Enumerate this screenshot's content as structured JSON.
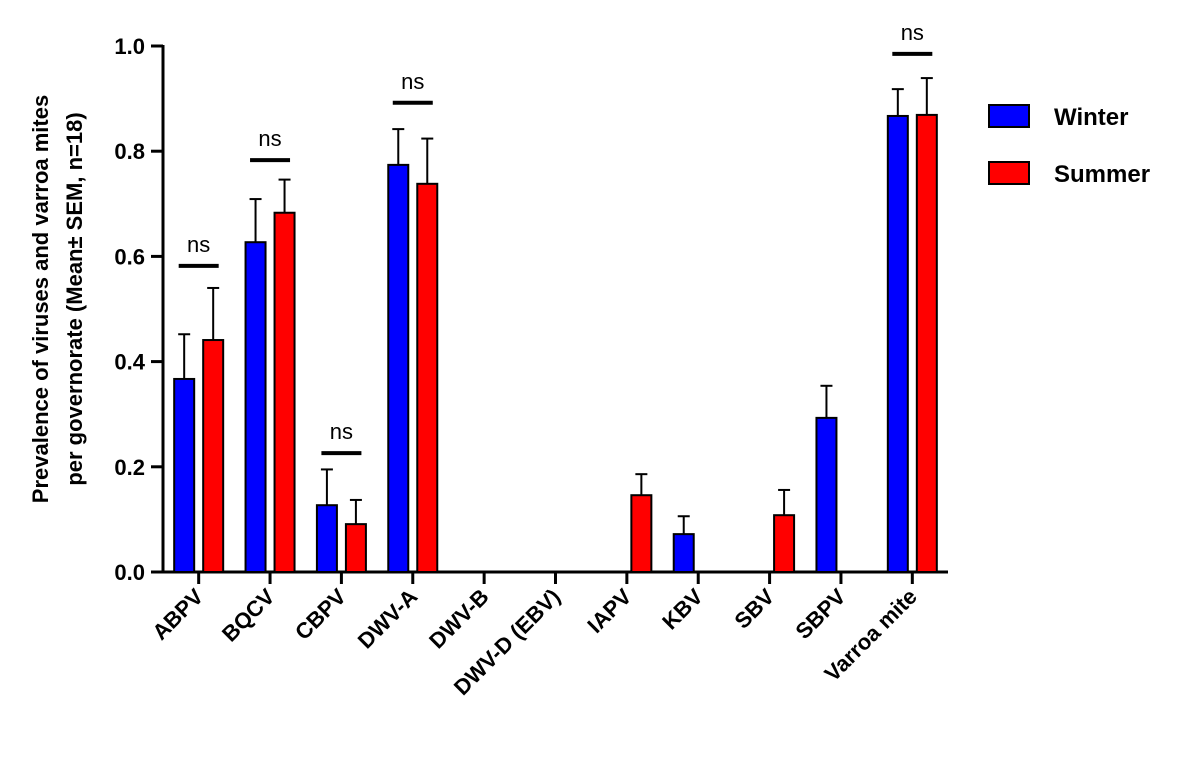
{
  "chart_data": {
    "type": "bar",
    "ylabel": [
      "Prevalence of viruses and varroa mites",
      "per governorate (Mean± SEM, n=18)"
    ],
    "categories": [
      "ABPV",
      "BQCV",
      "CBPV",
      "DWV-A",
      "DWV-B",
      "DWV-D (EBV)",
      "IAPV",
      "KBV",
      "SBV",
      "SBPV",
      "Varroa mite"
    ],
    "series": [
      {
        "name": "Winter",
        "color": "#0000ff",
        "values": [
          0.367,
          0.627,
          0.127,
          0.774,
          0,
          0,
          0,
          0.072,
          0,
          0.293,
          0.867
        ],
        "errors": [
          0.085,
          0.082,
          0.068,
          0.068,
          null,
          null,
          null,
          0.034,
          null,
          0.061,
          0.051
        ]
      },
      {
        "name": "Summer",
        "color": "#ff0000",
        "values": [
          0.441,
          0.683,
          0.091,
          0.738,
          0,
          0,
          0.146,
          0,
          0.108,
          0,
          0.869
        ],
        "errors": [
          0.099,
          0.063,
          0.046,
          0.086,
          null,
          null,
          0.04,
          null,
          0.048,
          null,
          0.07
        ]
      }
    ],
    "annotations": [
      {
        "category": "ABPV",
        "text": "ns",
        "y": 0.582
      },
      {
        "category": "BQCV",
        "text": "ns",
        "y": 0.783
      },
      {
        "category": "CBPV",
        "text": "ns",
        "y": 0.226
      },
      {
        "category": "DWV-A",
        "text": "ns",
        "y": 0.892
      },
      {
        "category": "Varroa mite",
        "text": "ns",
        "y": 0.985
      }
    ],
    "ylim": [
      0,
      1
    ],
    "yticks": [
      {
        "value": 0,
        "label": "0.0"
      },
      {
        "value": 0.2,
        "label": "0.2"
      },
      {
        "value": 0.4,
        "label": "0.4"
      },
      {
        "value": 0.6,
        "label": "0.6"
      },
      {
        "value": 0.8,
        "label": "0.8"
      },
      {
        "value": 1,
        "label": "1.0"
      }
    ],
    "legend": "right"
  }
}
